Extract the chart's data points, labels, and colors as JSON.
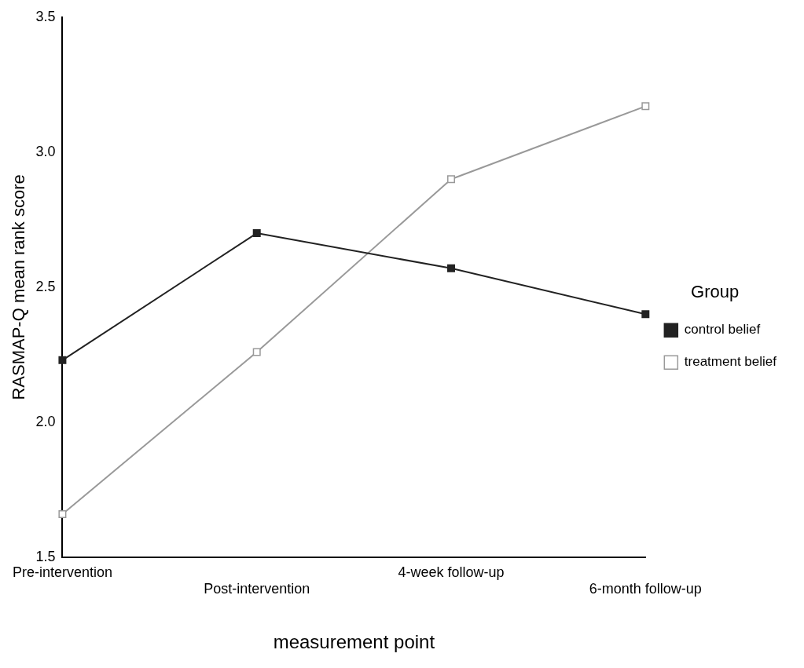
{
  "chart_data": {
    "type": "line",
    "xlabel": "measurement point",
    "ylabel": "RASMAP-Q mean rank score",
    "legend_title": "Group",
    "categories": [
      "Pre-intervention",
      "Post-intervention",
      "4-week follow-up",
      "6-month follow-up"
    ],
    "series": [
      {
        "name": "control belief",
        "color": "#222222",
        "values": [
          2.23,
          2.7,
          2.57,
          2.4
        ]
      },
      {
        "name": "treatment belief",
        "color": "#999999",
        "values": [
          1.66,
          2.26,
          2.9,
          3.17
        ]
      }
    ],
    "ylim": [
      1.5,
      3.5
    ],
    "yticks": [
      1.5,
      {
        "value": 2,
        "label": "2.0"
      },
      2.5,
      {
        "value": 3,
        "label": "3.0"
      },
      3.5
    ],
    "grid": false,
    "legend": "right",
    "marker": "square",
    "line_style": "solid"
  }
}
